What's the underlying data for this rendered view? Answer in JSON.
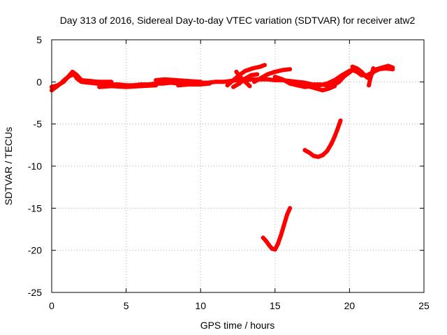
{
  "chart_data": {
    "type": "scatter",
    "title": "Day 313 of 2016, Sidereal Day-to-day VTEC variation (SDTVAR) for receiver atw2",
    "xlabel": "GPS time / hours",
    "ylabel": "SDTVAR / TECUs",
    "xlim": [
      0,
      25
    ],
    "ylim": [
      -25,
      5
    ],
    "xticks": [
      0,
      5,
      10,
      15,
      20,
      25
    ],
    "yticks": [
      -25,
      -20,
      -15,
      -10,
      -5,
      0,
      5
    ],
    "grid": true,
    "series": [
      {
        "name": "SDTVAR",
        "color": "#ff0000",
        "segments": [
          [
            [
              0.0,
              -1.0
            ],
            [
              0.3,
              -0.6
            ],
            [
              0.6,
              -0.2
            ],
            [
              0.9,
              0.3
            ],
            [
              1.2,
              0.7
            ],
            [
              1.5,
              0.9
            ],
            [
              1.7,
              0.4
            ],
            [
              2.0,
              0.0
            ],
            [
              2.5,
              -0.1
            ],
            [
              3.0,
              -0.2
            ],
            [
              3.5,
              -0.2
            ],
            [
              4.0,
              -0.3
            ],
            [
              4.5,
              -0.3
            ],
            [
              5.0,
              -0.4
            ],
            [
              5.5,
              -0.4
            ],
            [
              6.0,
              -0.3
            ],
            [
              6.5,
              -0.3
            ],
            [
              7.0,
              -0.2
            ],
            [
              7.5,
              -0.2
            ],
            [
              8.0,
              -0.1
            ],
            [
              8.5,
              -0.2
            ],
            [
              9.0,
              -0.1
            ],
            [
              9.5,
              -0.2
            ],
            [
              10.0,
              -0.1
            ],
            [
              10.5,
              -0.1
            ],
            [
              11.0,
              0.0
            ],
            [
              11.5,
              0.0
            ],
            [
              12.0,
              0.1
            ],
            [
              12.5,
              0.2
            ],
            [
              13.0,
              0.2
            ],
            [
              13.5,
              0.3
            ],
            [
              14.0,
              0.3
            ],
            [
              14.5,
              0.3
            ],
            [
              15.0,
              0.2
            ],
            [
              15.5,
              0.2
            ],
            [
              16.0,
              0.1
            ],
            [
              16.5,
              0.0
            ],
            [
              17.0,
              -0.1
            ],
            [
              17.5,
              -0.3
            ],
            [
              18.0,
              -0.3
            ],
            [
              18.5,
              -0.4
            ],
            [
              19.0,
              -0.3
            ],
            [
              19.3,
              0.0
            ],
            [
              19.6,
              0.6
            ],
            [
              19.9,
              1.0
            ],
            [
              20.2,
              1.4
            ],
            [
              20.5,
              1.2
            ],
            [
              20.8,
              0.8
            ],
            [
              21.2,
              0.8
            ],
            [
              21.6,
              1.2
            ],
            [
              22.0,
              1.5
            ],
            [
              22.4,
              1.6
            ],
            [
              22.9,
              1.5
            ]
          ],
          [
            [
              0.0,
              -0.6
            ],
            [
              0.4,
              -0.4
            ],
            [
              0.8,
              0.0
            ],
            [
              1.1,
              0.6
            ],
            [
              1.4,
              1.2
            ],
            [
              1.7,
              0.8
            ],
            [
              2.0,
              0.2
            ],
            [
              2.6,
              0.1
            ],
            [
              3.2,
              0.0
            ],
            [
              4.0,
              0.0
            ]
          ],
          [
            [
              3.2,
              -0.6
            ],
            [
              4.0,
              -0.5
            ],
            [
              5.0,
              -0.6
            ],
            [
              6.0,
              -0.5
            ],
            [
              7.0,
              -0.4
            ]
          ],
          [
            [
              7.0,
              0.2
            ],
            [
              7.6,
              0.3
            ],
            [
              8.4,
              0.2
            ],
            [
              9.2,
              0.1
            ],
            [
              10.0,
              0.0
            ]
          ],
          [
            [
              8.5,
              -0.4
            ],
            [
              9.2,
              -0.3
            ],
            [
              10.0,
              -0.3
            ],
            [
              10.6,
              -0.2
            ]
          ],
          [
            [
              11.8,
              -0.4
            ],
            [
              12.2,
              0.2
            ],
            [
              12.6,
              0.8
            ],
            [
              13.0,
              1.3
            ],
            [
              13.5,
              1.6
            ],
            [
              14.0,
              1.8
            ],
            [
              14.3,
              2.0
            ]
          ],
          [
            [
              12.2,
              -0.6
            ],
            [
              12.6,
              -0.2
            ],
            [
              13.0,
              0.4
            ],
            [
              13.4,
              0.8
            ],
            [
              13.8,
              0.9
            ]
          ],
          [
            [
              12.4,
              1.2
            ],
            [
              12.7,
              0.5
            ],
            [
              13.0,
              0.0
            ],
            [
              13.3,
              -0.5
            ]
          ],
          [
            [
              13.6,
              0.0
            ],
            [
              14.0,
              0.4
            ],
            [
              14.5,
              0.9
            ],
            [
              15.0,
              1.2
            ],
            [
              15.5,
              1.4
            ],
            [
              16.0,
              1.5
            ]
          ],
          [
            [
              15.0,
              0.6
            ],
            [
              15.5,
              0.3
            ],
            [
              16.0,
              -0.2
            ],
            [
              16.5,
              -0.4
            ],
            [
              17.0,
              -0.6
            ],
            [
              17.5,
              -0.5
            ],
            [
              18.0,
              -0.4
            ],
            [
              18.5,
              -0.2
            ],
            [
              19.0,
              0.2
            ],
            [
              19.5,
              0.8
            ],
            [
              20.0,
              1.3
            ],
            [
              20.4,
              1.6
            ]
          ],
          [
            [
              17.0,
              -0.2
            ],
            [
              17.4,
              -0.6
            ],
            [
              17.8,
              -0.8
            ],
            [
              18.2,
              -1.0
            ],
            [
              18.6,
              -0.8
            ],
            [
              19.0,
              -0.5
            ]
          ],
          [
            [
              20.2,
              1.8
            ],
            [
              20.5,
              1.6
            ],
            [
              20.8,
              1.2
            ],
            [
              21.0,
              0.8
            ],
            [
              21.2,
              0.5
            ],
            [
              21.5,
              1.0
            ],
            [
              21.8,
              1.4
            ]
          ],
          [
            [
              21.2,
              0.6
            ],
            [
              21.5,
              1.0
            ],
            [
              21.8,
              1.5
            ],
            [
              22.2,
              1.7
            ],
            [
              22.6,
              1.9
            ],
            [
              22.9,
              1.7
            ]
          ],
          [
            [
              21.3,
              -0.4
            ],
            [
              21.4,
              0.4
            ],
            [
              21.5,
              1.0
            ],
            [
              21.6,
              1.6
            ]
          ],
          [
            [
              17.0,
              -8.1
            ],
            [
              17.3,
              -8.4
            ],
            [
              17.6,
              -8.8
            ],
            [
              17.9,
              -8.9
            ],
            [
              18.2,
              -8.7
            ],
            [
              18.5,
              -8.2
            ],
            [
              18.8,
              -7.3
            ],
            [
              19.0,
              -6.5
            ],
            [
              19.2,
              -5.6
            ],
            [
              19.4,
              -4.6
            ]
          ],
          [
            [
              14.2,
              -18.5
            ],
            [
              14.4,
              -18.9
            ],
            [
              14.6,
              -19.4
            ],
            [
              14.8,
              -19.8
            ],
            [
              15.0,
              -19.9
            ],
            [
              15.2,
              -19.2
            ],
            [
              15.4,
              -18.2
            ],
            [
              15.6,
              -17.0
            ],
            [
              15.8,
              -15.8
            ],
            [
              16.0,
              -15.0
            ]
          ]
        ]
      }
    ]
  }
}
